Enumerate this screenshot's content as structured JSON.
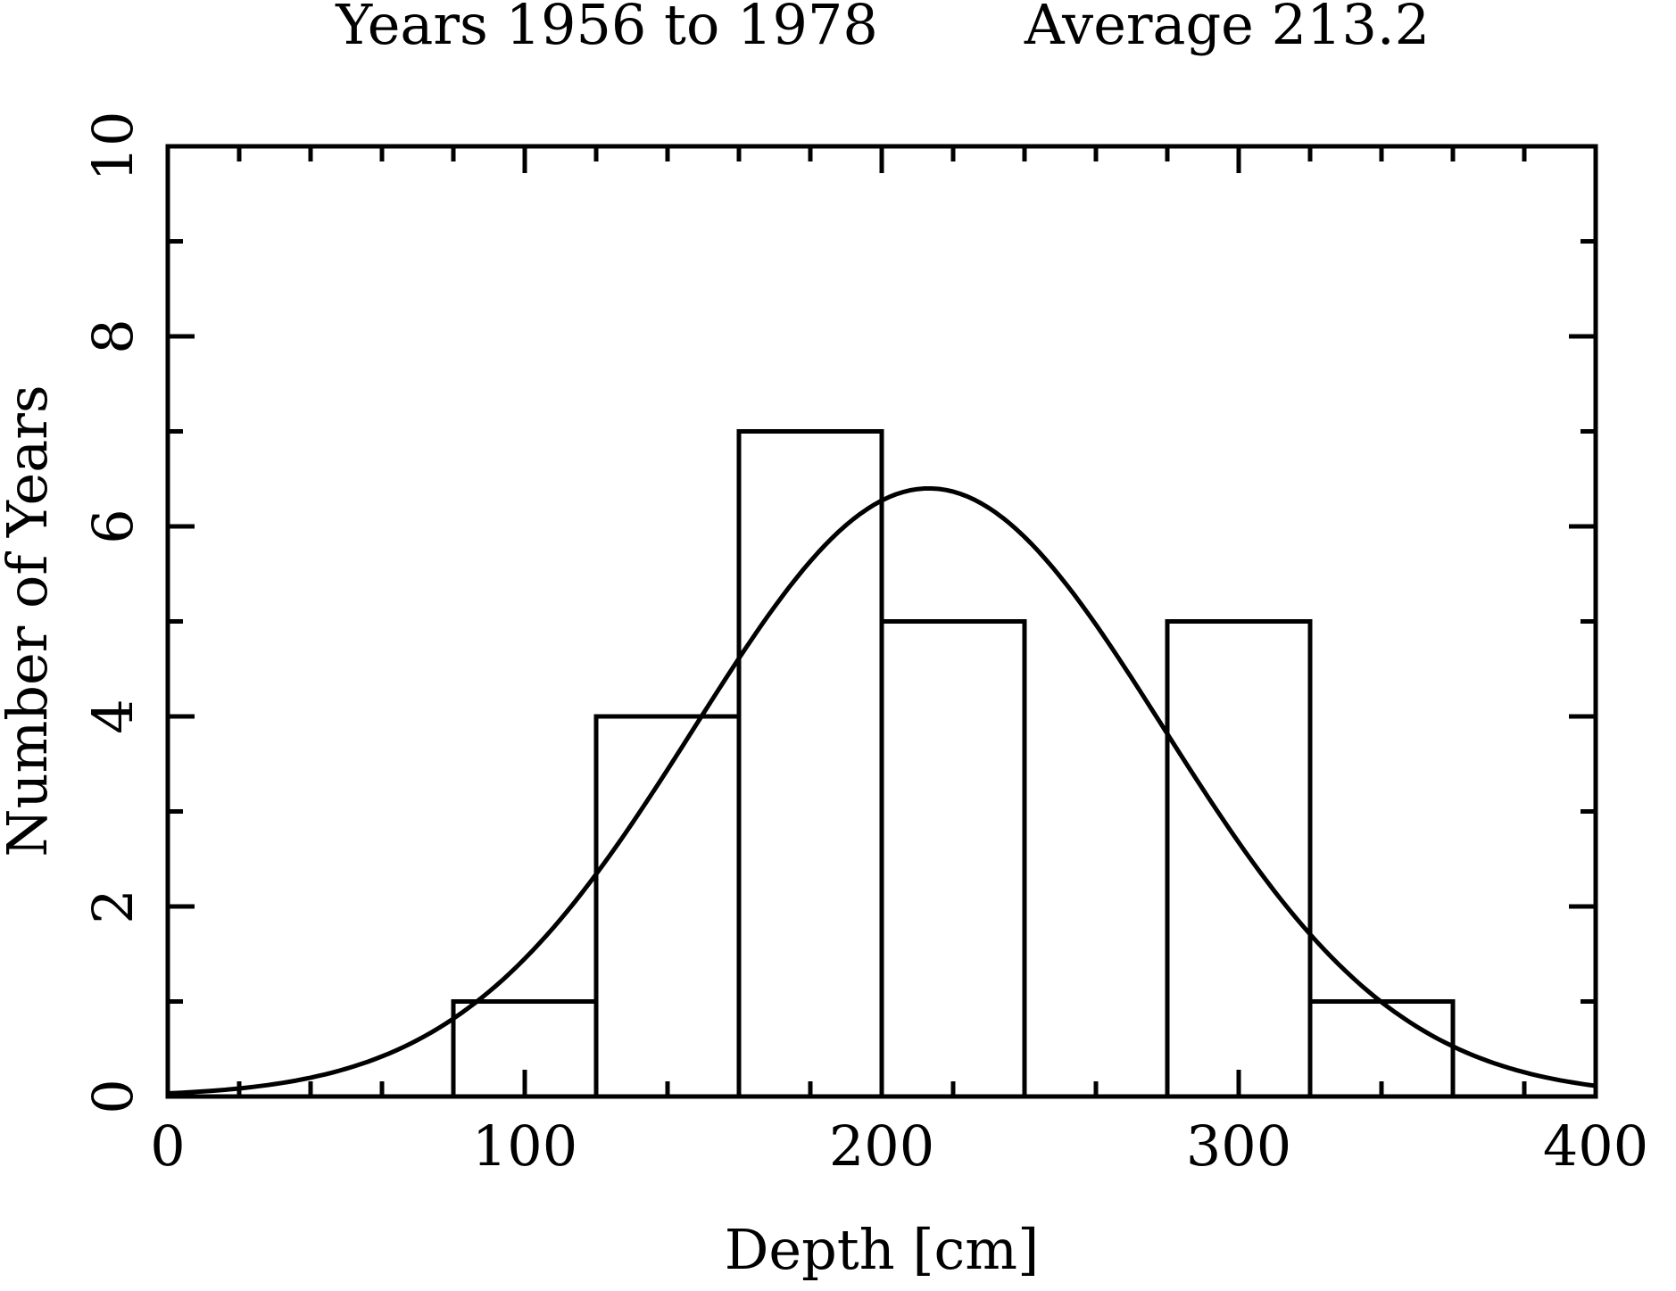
{
  "chart_data": {
    "type": "bar",
    "subtype": "histogram-with-gaussian-fit",
    "title_left": "Years 1956 to 1978",
    "title_right": "Average 213.2",
    "xlabel": "Depth [cm]",
    "ylabel": "Number of Years",
    "xlim": [
      0,
      400
    ],
    "ylim": [
      0,
      10
    ],
    "x_major_ticks": [
      0,
      100,
      200,
      300,
      400
    ],
    "x_tick_labels": [
      "0",
      "100",
      "200",
      "300",
      "400"
    ],
    "x_minor_step": 20,
    "y_major_ticks": [
      0,
      2,
      4,
      6,
      8,
      10
    ],
    "y_tick_labels": [
      "0",
      "2",
      "4",
      "6",
      "8",
      "10"
    ],
    "y_minor_step": 1,
    "grid": false,
    "legend": "none",
    "histogram": {
      "bin_edges": [
        80,
        120,
        160,
        200,
        240,
        280,
        320,
        360
      ],
      "counts": [
        1,
        4,
        7,
        5,
        0,
        5,
        1
      ],
      "bin_width": 40,
      "total_years": 23
    },
    "gaussian_fit": {
      "amplitude": 6.4,
      "mean": 213.2,
      "sigma": 65.7
    },
    "colors": {
      "line": "#000000",
      "background": "#ffffff"
    }
  }
}
